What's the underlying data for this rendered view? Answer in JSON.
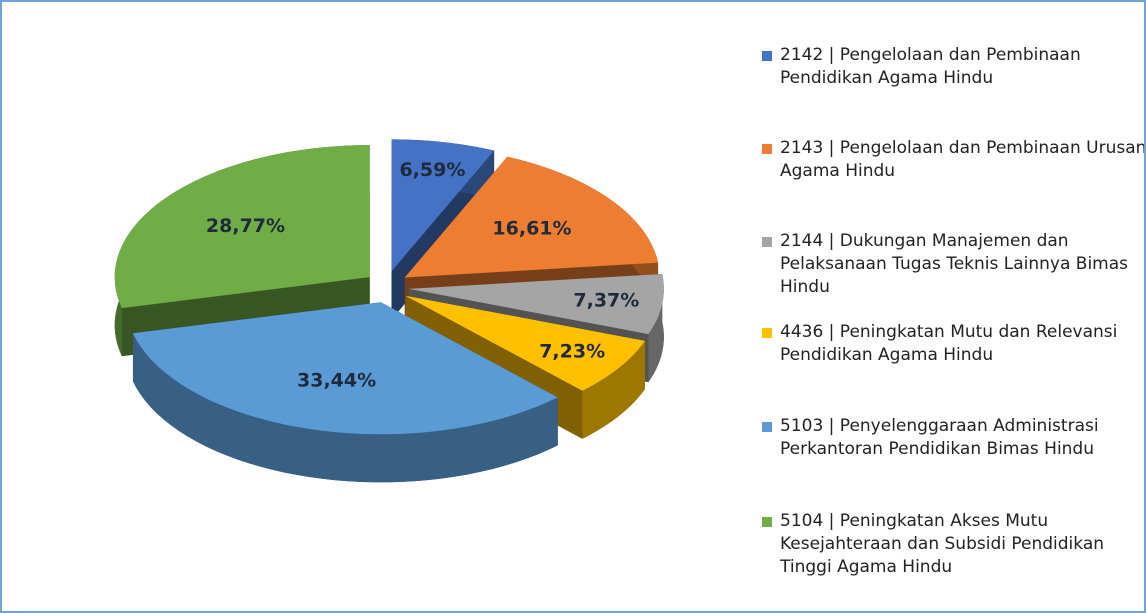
{
  "chart_data": {
    "type": "pie",
    "categories": [
      "2142 | Pengelolaan dan Pembinaan Pendidikan Agama Hindu",
      "2143 | Pengelolaan dan Pembinaan Urusan Agama Hindu",
      "2144 | Dukungan Manajemen dan Pelaksanaan Tugas Teknis Lainnya Bimas Hindu",
      "4436 | Peningkatan Mutu dan Relevansi Pendidikan Agama Hindu",
      "5103 | Penyelenggaraan Administrasi Perkantoran Pendidikan Bimas Hindu",
      "5104 | Peningkatan Akses Mutu Kesejahteraan dan Subsidi Pendidikan Tinggi Agama Hindu"
    ],
    "values": [
      6.59,
      16.61,
      7.37,
      7.23,
      33.44,
      28.77
    ],
    "value_labels": [
      "6,59%",
      "16,61%",
      "7,37%",
      "7,23%",
      "33,44%",
      "28,77%"
    ],
    "colors": [
      "#4472c4",
      "#ed7d31",
      "#a5a5a5",
      "#ffc000",
      "#5b9bd5",
      "#70ad47"
    ],
    "legend": "right"
  }
}
